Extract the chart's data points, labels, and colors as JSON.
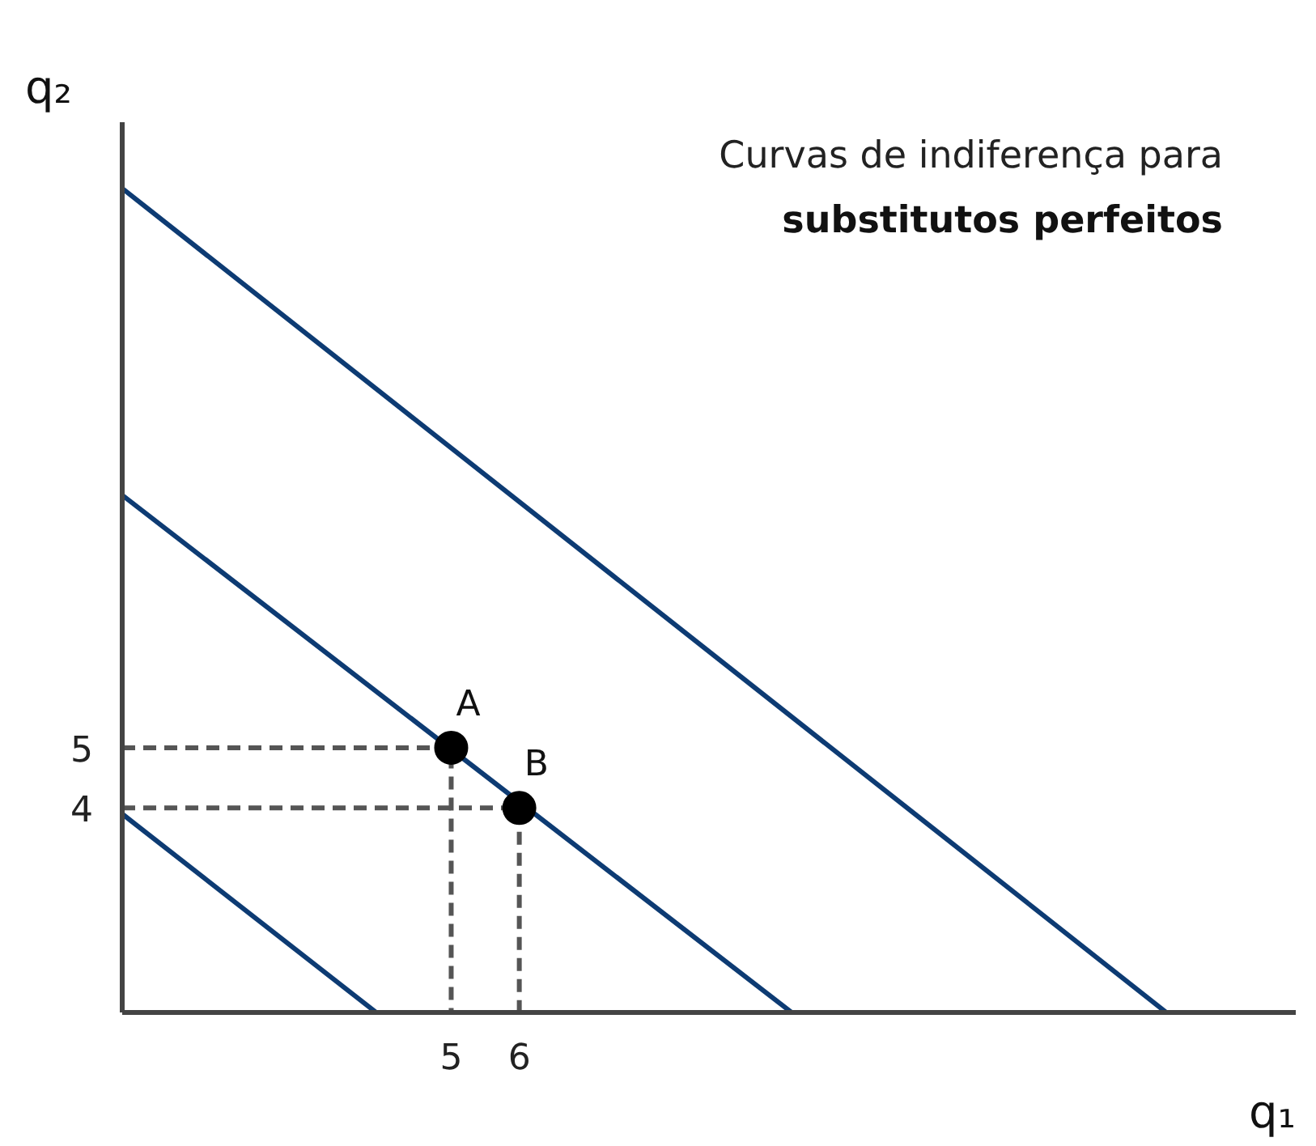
{
  "chart_data": {
    "type": "line",
    "title": "Curvas de indiferença para",
    "subtitle": "substitutos perfeitos",
    "xlabel": "q₁",
    "ylabel": "q₂",
    "xlim": [
      0.17,
      17.4
    ],
    "ylim": [
      0.6,
      15.4
    ],
    "xticks": [
      5,
      6
    ],
    "yticks": [
      4,
      5
    ],
    "grid": false,
    "series": [
      {
        "color": "#0d3b73",
        "x": [
          0.17,
          15.5
        ],
        "values": [
          14.3,
          0.6
        ]
      },
      {
        "color": "#0d3b73",
        "x": [
          0.17,
          10.0
        ],
        "values": [
          9.2,
          0.6
        ]
      },
      {
        "color": "#0d3b73",
        "x": [
          0.17,
          3.9
        ],
        "values": [
          3.9,
          0.6
        ]
      },
      {
        "color": "#555555",
        "line_style": "dashed",
        "x": [
          0.17,
          5,
          5
        ],
        "values": [
          5,
          5,
          0.6
        ]
      },
      {
        "color": "#555555",
        "line_style": "dashed",
        "x": [
          0.17,
          6,
          6
        ],
        "values": [
          4,
          4,
          0.6
        ]
      },
      {
        "type": "scatter",
        "color": "#000000",
        "marker": "circle",
        "x": [
          5,
          6
        ],
        "values": [
          5,
          4
        ]
      }
    ],
    "annotations": [
      {
        "text": "A",
        "x": 5,
        "y": 5
      },
      {
        "text": "B",
        "x": 6,
        "y": 4
      }
    ]
  }
}
